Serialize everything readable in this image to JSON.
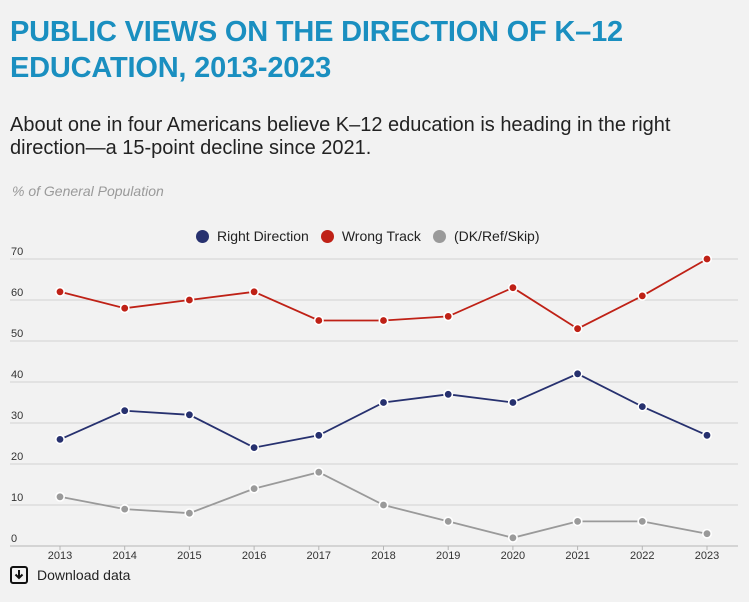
{
  "title": "PUBLIC VIEWS ON THE DIRECTION OF K–12 EDUCATION, 2013-2023",
  "subtitle": "About one in four Americans believe K–12 education is heading in the right direction—a 15-point decline since 2021.",
  "unit_label": "% of General Population",
  "download_label": "Download data",
  "chart_data": {
    "type": "line",
    "title": "PUBLIC VIEWS ON THE DIRECTION OF K–12 EDUCATION, 2013-2023",
    "subtitle": "About one in four Americans believe K–12 education is heading in the right direction—a 15-point decline since 2021.",
    "ylabel": "% of General Population",
    "xlabel": "",
    "categories": [
      "2013",
      "2014",
      "2015",
      "2016",
      "2017",
      "2018",
      "2019",
      "2020",
      "2021",
      "2022",
      "2023"
    ],
    "ylim": [
      0,
      70
    ],
    "yticks": [
      0,
      10,
      20,
      30,
      40,
      50,
      60,
      70
    ],
    "grid": true,
    "legend_position": "top-center",
    "series": [
      {
        "name": "Right Direction",
        "color": "#27316f",
        "values": [
          26,
          33,
          32,
          24,
          27,
          35,
          37,
          35,
          42,
          34,
          27
        ]
      },
      {
        "name": "Wrong Track",
        "color": "#bf2116",
        "values": [
          62,
          58,
          60,
          62,
          55,
          55,
          56,
          63,
          53,
          61,
          70
        ]
      },
      {
        "name": "(DK/Ref/Skip)",
        "color": "#9a9a9a",
        "values": [
          12,
          9,
          8,
          14,
          18,
          10,
          6,
          2,
          6,
          6,
          3
        ]
      }
    ]
  }
}
